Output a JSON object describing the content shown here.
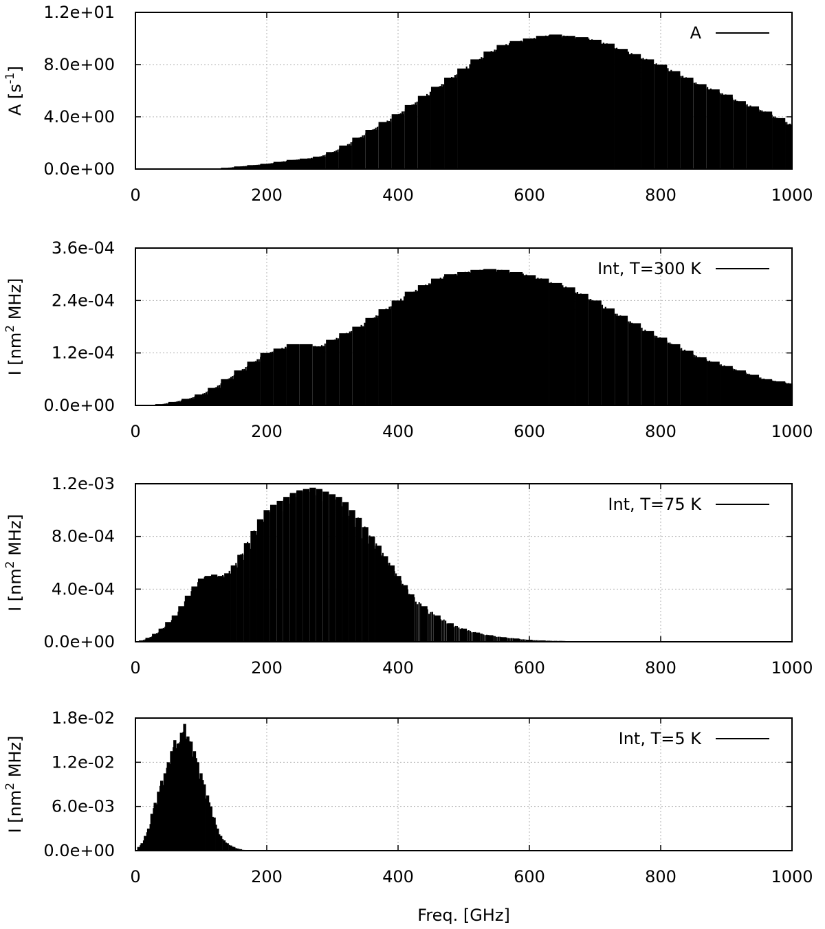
{
  "figure": {
    "xlabel": "Freq. [GHz]"
  },
  "chart_data": [
    {
      "type": "bar",
      "legend": "A",
      "ylabel_main": "A [s",
      "ylabel_sup": "-1",
      "ylabel_tail": "]",
      "xlim": [
        0,
        1000
      ],
      "ylim": [
        0,
        12
      ],
      "xticks": [
        0,
        200,
        400,
        600,
        800,
        1000
      ],
      "yticks": [
        0,
        4,
        8,
        12
      ],
      "ytick_labels": [
        "0.0e+00",
        "4.0e+00",
        "8.0e+00",
        "1.2e+01"
      ],
      "grid": true,
      "legend_position": "top-right",
      "x": [
        140,
        160,
        180,
        200,
        220,
        240,
        260,
        280,
        300,
        320,
        340,
        360,
        380,
        400,
        420,
        440,
        460,
        480,
        500,
        520,
        540,
        560,
        580,
        600,
        620,
        640,
        660,
        680,
        700,
        720,
        740,
        760,
        780,
        800,
        820,
        840,
        860,
        880,
        900,
        920,
        940,
        960,
        980,
        1000
      ],
      "values": [
        0.1,
        0.2,
        0.3,
        0.4,
        0.55,
        0.7,
        0.8,
        0.95,
        1.3,
        1.8,
        2.4,
        3.0,
        3.6,
        4.2,
        4.9,
        5.6,
        6.3,
        7.0,
        7.7,
        8.4,
        9.0,
        9.5,
        9.8,
        10.0,
        10.2,
        10.3,
        10.2,
        10.1,
        9.9,
        9.6,
        9.2,
        8.8,
        8.4,
        8.0,
        7.5,
        7.0,
        6.5,
        6.1,
        5.7,
        5.2,
        4.8,
        4.4,
        3.9,
        3.4
      ]
    },
    {
      "type": "bar",
      "legend": "Int, T=300 K",
      "ylabel_main": "I [nm",
      "ylabel_sup": "2",
      "ylabel_tail": " MHz]",
      "xlim": [
        0,
        1000
      ],
      "ylim": [
        0,
        0.00036
      ],
      "xticks": [
        0,
        200,
        400,
        600,
        800,
        1000
      ],
      "yticks": [
        0,
        0.00012,
        0.00024,
        0.00036
      ],
      "ytick_labels": [
        "0.0e+00",
        "1.2e-04",
        "2.4e-04",
        "3.6e-04"
      ],
      "grid": true,
      "legend_position": "top-right",
      "x": [
        40,
        60,
        80,
        100,
        120,
        140,
        160,
        180,
        200,
        220,
        240,
        260,
        280,
        300,
        320,
        340,
        360,
        380,
        400,
        420,
        440,
        460,
        480,
        500,
        520,
        540,
        560,
        580,
        600,
        620,
        640,
        660,
        680,
        700,
        720,
        740,
        760,
        780,
        800,
        820,
        840,
        860,
        880,
        900,
        920,
        940,
        960,
        980,
        1000
      ],
      "values": [
        3e-06,
        8e-06,
        1.5e-05,
        2.5e-05,
        4e-05,
        6e-05,
        8e-05,
        0.0001,
        0.00012,
        0.00013,
        0.00014,
        0.00014,
        0.000135,
        0.00015,
        0.000165,
        0.00018,
        0.0002,
        0.00022,
        0.00024,
        0.00026,
        0.000275,
        0.00029,
        0.0003,
        0.000305,
        0.00031,
        0.000312,
        0.00031,
        0.000305,
        0.000298,
        0.00029,
        0.00028,
        0.00027,
        0.000255,
        0.00024,
        0.000222,
        0.000205,
        0.000188,
        0.00017,
        0.000155,
        0.00014,
        0.000125,
        0.00011,
        0.0001,
        9e-05,
        8e-05,
        7e-05,
        6e-05,
        5.5e-05,
        5e-05
      ]
    },
    {
      "type": "bar",
      "legend": "Int, T=75 K",
      "ylabel_main": "I [nm",
      "ylabel_sup": "2",
      "ylabel_tail": " MHz]",
      "xlim": [
        0,
        1000
      ],
      "ylim": [
        0,
        0.0012
      ],
      "xticks": [
        0,
        200,
        400,
        600,
        800,
        1000
      ],
      "yticks": [
        0,
        0.0004,
        0.0008,
        0.0012
      ],
      "ytick_labels": [
        "0.0e+00",
        "4.0e-04",
        "8.0e-04",
        "1.2e-03"
      ],
      "grid": true,
      "legend_position": "top-right",
      "x": [
        10,
        20,
        30,
        40,
        50,
        60,
        70,
        80,
        90,
        100,
        110,
        120,
        130,
        140,
        150,
        160,
        170,
        180,
        190,
        200,
        210,
        220,
        230,
        240,
        250,
        260,
        270,
        280,
        290,
        300,
        310,
        320,
        330,
        340,
        350,
        360,
        370,
        380,
        390,
        400,
        410,
        420,
        440,
        460,
        480,
        500,
        520,
        540,
        560,
        580,
        600,
        620,
        650,
        680,
        700
      ],
      "values": [
        1e-05,
        3e-05,
        6e-05,
        0.0001,
        0.00015,
        0.0002,
        0.00027,
        0.00035,
        0.00042,
        0.00048,
        0.0005,
        0.00051,
        0.0005,
        0.00052,
        0.00058,
        0.00066,
        0.00075,
        0.00084,
        0.00093,
        0.001,
        0.00104,
        0.00107,
        0.0011,
        0.00113,
        0.00115,
        0.00116,
        0.00117,
        0.00116,
        0.00114,
        0.00112,
        0.0011,
        0.00106,
        0.001,
        0.00094,
        0.00087,
        0.0008,
        0.00073,
        0.00065,
        0.00058,
        0.0005,
        0.00043,
        0.00036,
        0.00027,
        0.0002,
        0.00014,
        0.0001,
        7e-05,
        5e-05,
        3.5e-05,
        2.5e-05,
        1.5e-05,
        1e-05,
        6e-06,
        4e-06,
        3e-06
      ]
    },
    {
      "type": "bar",
      "legend": "Int, T=5 K",
      "ylabel_main": "I [nm",
      "ylabel_sup": "2",
      "ylabel_tail": " MHz]",
      "xlim": [
        0,
        1000
      ],
      "ylim": [
        0,
        0.018
      ],
      "xticks": [
        0,
        200,
        400,
        600,
        800,
        1000
      ],
      "yticks": [
        0,
        0.006,
        0.012,
        0.018
      ],
      "ytick_labels": [
        "0.0e+00",
        "6.0e-03",
        "1.2e-02",
        "1.8e-02"
      ],
      "grid": true,
      "legend_position": "top-right",
      "x": [
        5,
        10,
        15,
        20,
        25,
        30,
        35,
        40,
        45,
        50,
        55,
        60,
        65,
        70,
        75,
        80,
        85,
        90,
        95,
        100,
        105,
        110,
        115,
        120,
        125,
        130,
        135,
        140,
        145,
        150,
        155,
        160,
        165,
        170
      ],
      "values": [
        0.0005,
        0.001,
        0.002,
        0.003,
        0.005,
        0.0065,
        0.008,
        0.0095,
        0.0105,
        0.012,
        0.0135,
        0.015,
        0.0145,
        0.016,
        0.0172,
        0.0155,
        0.0148,
        0.0135,
        0.012,
        0.0105,
        0.009,
        0.0075,
        0.006,
        0.0045,
        0.003,
        0.002,
        0.0014,
        0.001,
        0.0007,
        0.0005,
        0.0003,
        0.0002,
        0.0001,
        5e-05
      ]
    }
  ]
}
